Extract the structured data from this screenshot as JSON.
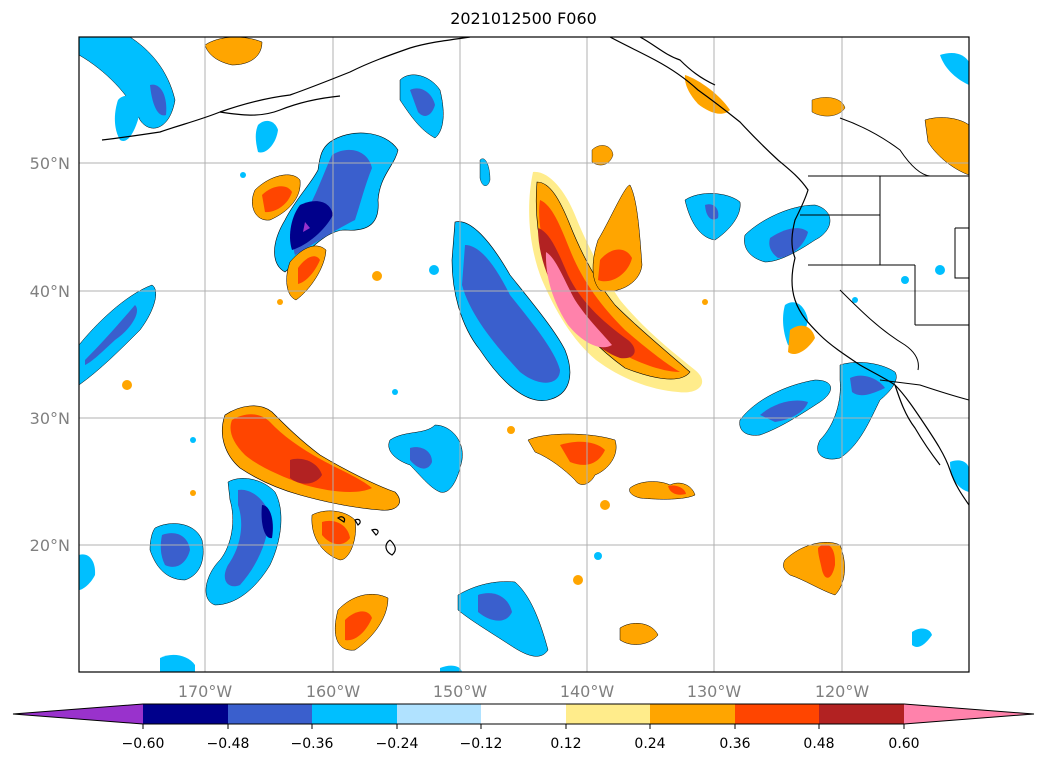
{
  "map": {
    "title": "2021012500 F060",
    "lat_labels": [
      "50°N",
      "40°N",
      "30°N",
      "20°N"
    ],
    "lon_labels": [
      "170°W",
      "160°W",
      "150°W",
      "140°W",
      "130°W",
      "120°W"
    ],
    "label_color": "#808080"
  },
  "colorbar": {
    "tick_labels": [
      "−0.60",
      "−0.48",
      "−0.36",
      "−0.24",
      "−0.12",
      "0.12",
      "0.24",
      "0.36",
      "0.48",
      "0.60"
    ],
    "colors": [
      "#9932CC",
      "#00008B",
      "#3A5FCD",
      "#00BFFF",
      "#B0E2FF",
      "#FFFFFF",
      "#FFEC8B",
      "#FFA500",
      "#FF4500",
      "#B22222",
      "#FF82AB"
    ]
  }
}
